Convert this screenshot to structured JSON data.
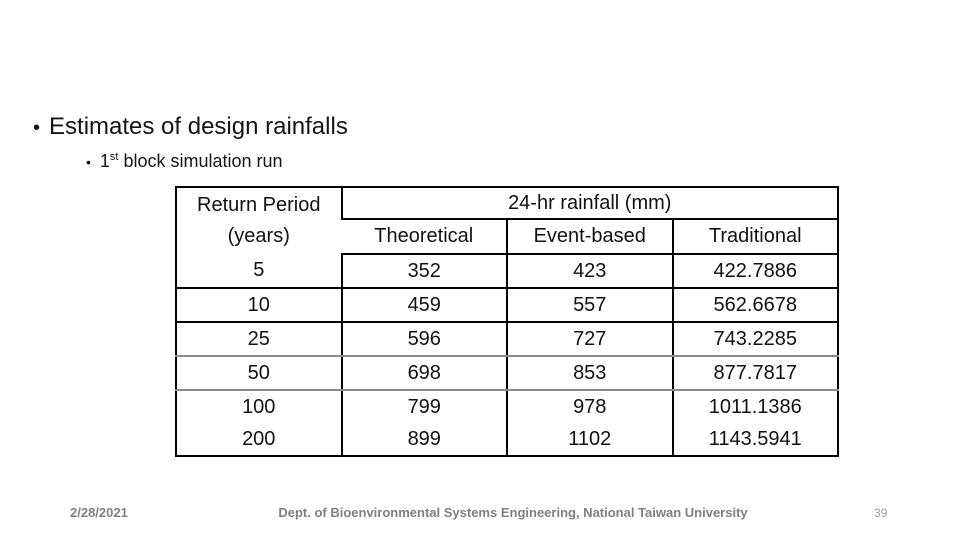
{
  "slide": {
    "title": "Estimates of design rainfalls",
    "subtitle": {
      "prefix": "1",
      "superscript": "st",
      "rest": " block simulation run"
    }
  },
  "bullets": {
    "level1": "•",
    "level2": "•"
  },
  "table": {
    "header": {
      "return_period_line1": "Return Period",
      "return_period_line2": "(years)",
      "rainfall_group": "24-hr rainfall (mm)",
      "columns": [
        "Theoretical",
        "Event-based",
        "Traditional"
      ]
    },
    "rows": [
      [
        "5",
        "352",
        "423",
        "422.7886"
      ],
      [
        "10",
        "459",
        "557",
        "562.6678"
      ],
      [
        "25",
        "596",
        "727",
        "743.2285"
      ],
      [
        "50",
        "698",
        "853",
        "877.7817"
      ],
      [
        "100",
        "799",
        "978",
        "1011.1386"
      ],
      [
        "200",
        "899",
        "1102",
        "1143.5941"
      ]
    ]
  },
  "footer": {
    "date": "2/28/2021",
    "department": "Dept. of Bioenvironmental Systems Engineering, National Taiwan University",
    "page_number": "39"
  },
  "colors": {
    "background": "#ffffff",
    "text": "#141414",
    "table_border": "#000000",
    "table_border_light": "#8c8c8c",
    "footer_text": "#808080",
    "page_number": "#9c9c9c"
  }
}
